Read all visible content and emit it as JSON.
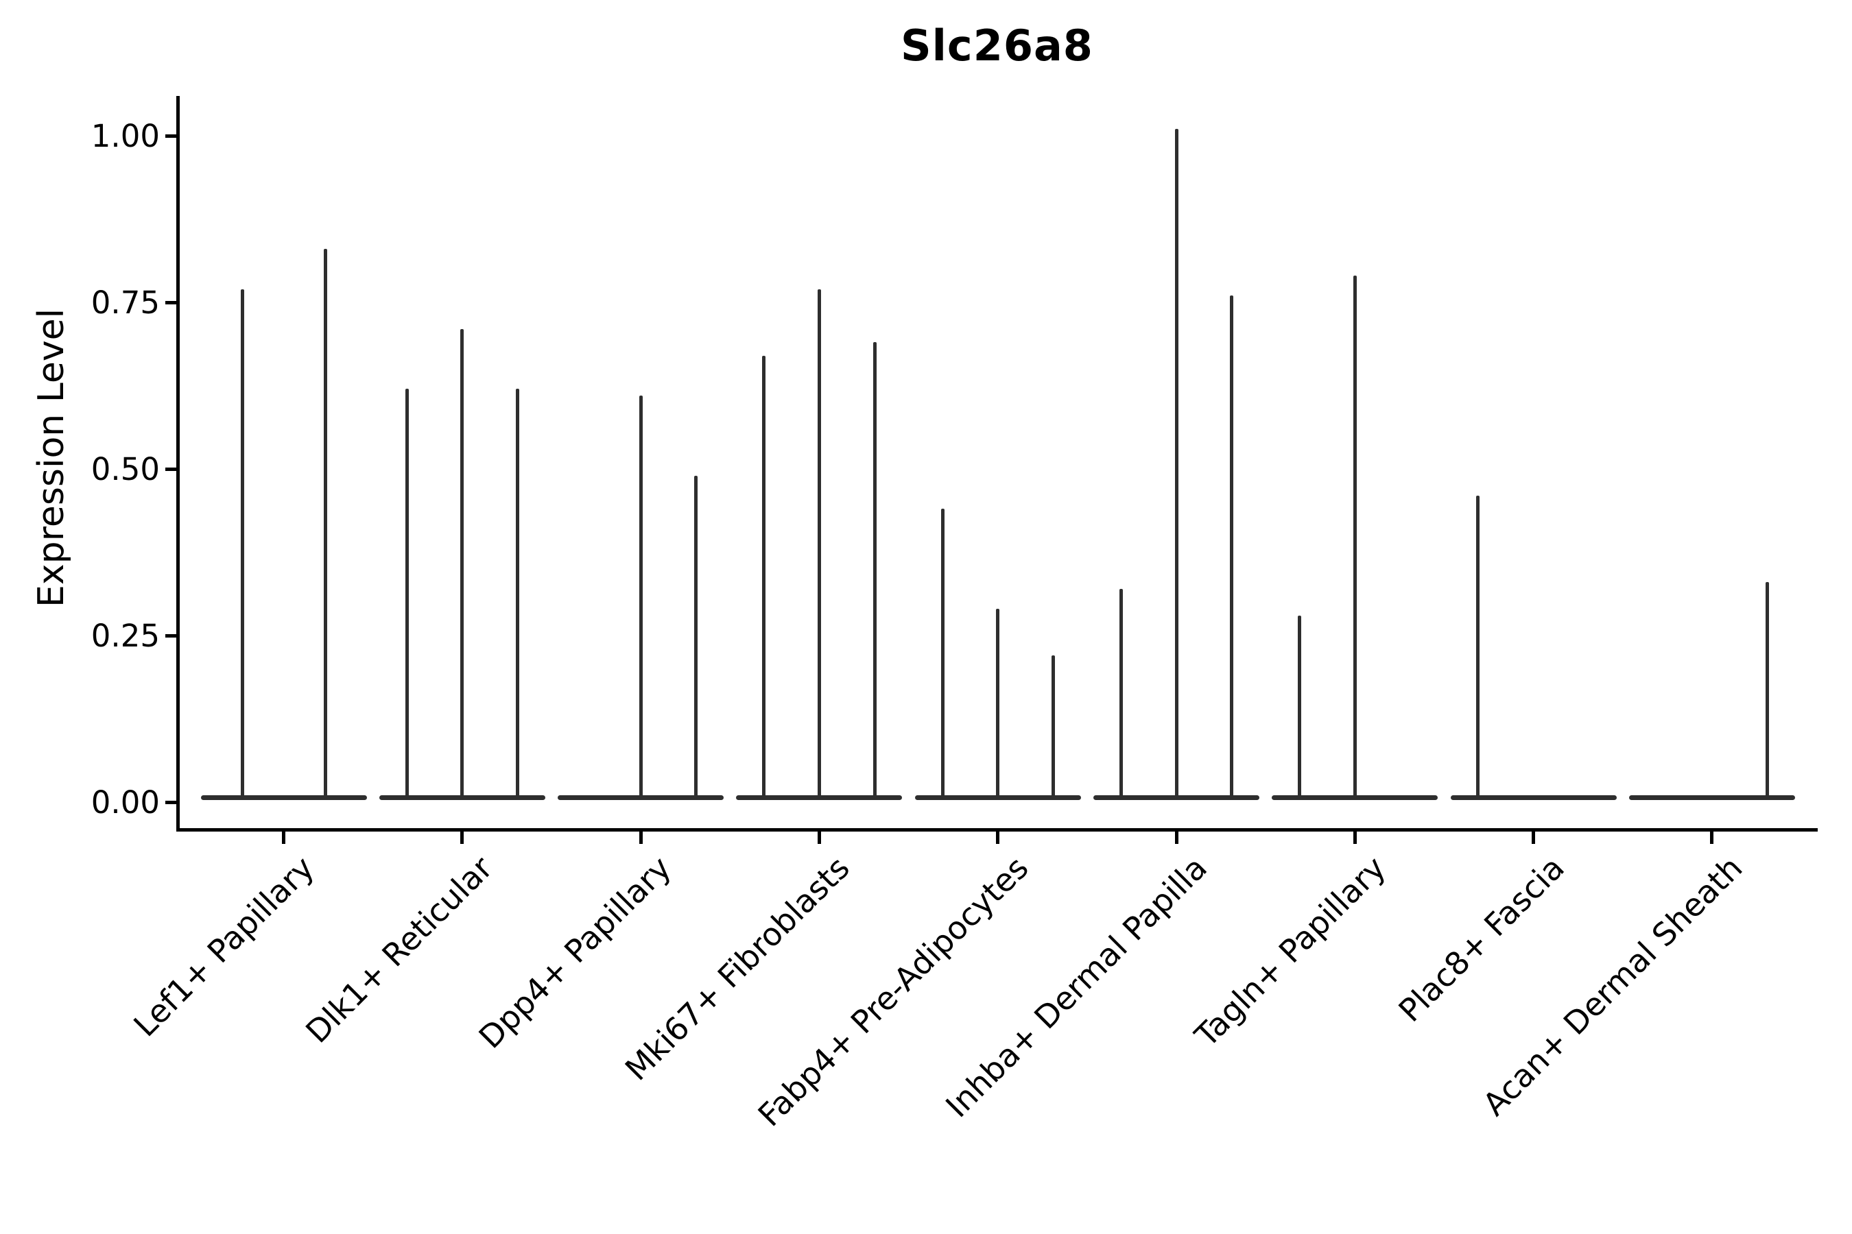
{
  "chart_data": {
    "type": "violin",
    "title": "Slc26a8",
    "ylabel": "Expression Level",
    "xlabel": "",
    "ylim": [
      0,
      1.05
    ],
    "yticks": [
      1.0,
      0.75,
      0.5,
      0.25,
      0.0
    ],
    "ytick_labels": [
      "1.00",
      "0.75",
      "0.50",
      "0.25",
      "0.00"
    ],
    "grid": false,
    "legend": "none",
    "categories": [
      "Lef1+ Papillary",
      "Dlk1+ Reticular",
      "Dpp4+ Papillary",
      "Mki67+ Fibroblasts",
      "Fabp4+ Pre-Adipocytes",
      "Inhba+ Dermal Papilla",
      "Tagln+ Papillary",
      "Plac8+ Fascia",
      "Acan+ Dermal Sheath"
    ],
    "groups": [
      {
        "label": "Lef1+ Papillary",
        "violin_max_expression": [
          0.77,
          0.83
        ]
      },
      {
        "label": "Dlk1+ Reticular",
        "violin_max_expression": [
          0.62,
          0.71,
          0.62
        ]
      },
      {
        "label": "Dpp4+ Papillary",
        "violin_max_expression": [
          0,
          0.61,
          0.49
        ]
      },
      {
        "label": "Mki67+ Fibroblasts",
        "violin_max_expression": [
          0.67,
          0.77,
          0.69
        ]
      },
      {
        "label": "Fabp4+ Pre-Adipocytes",
        "violin_max_expression": [
          0.44,
          0.29,
          0.22
        ]
      },
      {
        "label": "Inhba+ Dermal Papilla",
        "violin_max_expression": [
          0.32,
          1.01,
          0.76
        ]
      },
      {
        "label": "Tagln+ Papillary",
        "violin_max_expression": [
          0.28,
          0.79,
          0
        ]
      },
      {
        "label": "Plac8+ Fascia",
        "violin_max_expression": [
          0.46,
          0,
          0
        ]
      },
      {
        "label": "Acan+ Dermal Sheath",
        "violin_max_expression": [
          0,
          0,
          0.33
        ]
      }
    ],
    "colors": {
      "violin_line": "#2e2e2e",
      "axis": "#000000",
      "text": "#000000",
      "background": "#ffffff"
    }
  }
}
